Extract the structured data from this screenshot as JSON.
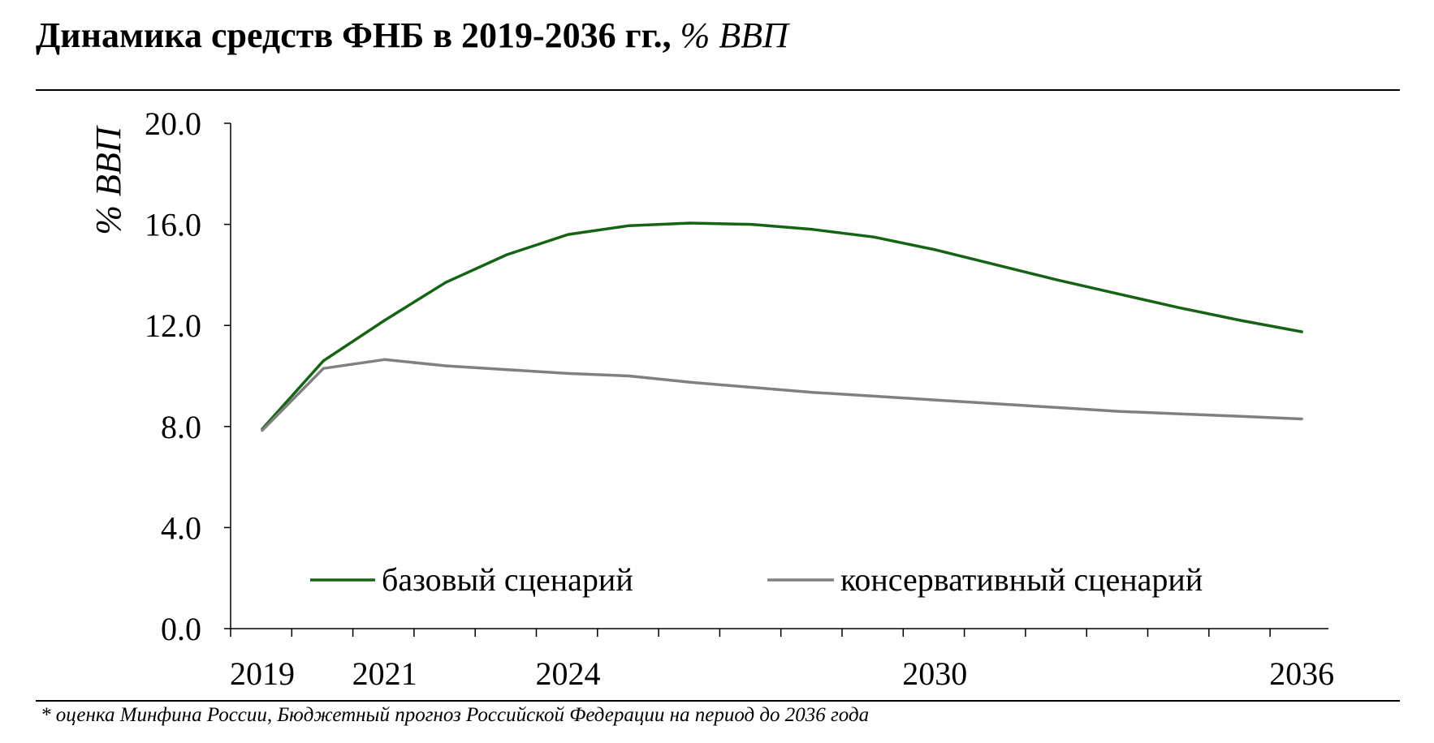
{
  "header": {
    "title_main": "Динамика средств ФНБ в 2019-2036 гг.,",
    "title_unit": "% ВВП"
  },
  "footnote": "* оценка Минфина России, Бюджетный прогноз Российской Федерации на период до 2036 года",
  "chart_data": {
    "type": "line",
    "title": "Динамика средств ФНБ в 2019-2036 гг., % ВВП",
    "ylabel": "% ВВП",
    "xlabel": "",
    "ylim": [
      0,
      20
    ],
    "yticks": [
      "0.0",
      "4.0",
      "8.0",
      "12.0",
      "16.0",
      "20.0"
    ],
    "x": [
      2019,
      2020,
      2021,
      2022,
      2023,
      2024,
      2025,
      2026,
      2027,
      2028,
      2029,
      2030,
      2031,
      2032,
      2033,
      2034,
      2035,
      2036
    ],
    "xtick_labels": [
      "2019",
      "2021",
      "2024",
      "2030",
      "2036"
    ],
    "grid": false,
    "legend_position": "bottom-center",
    "series": [
      {
        "name": "базовый сценарий",
        "color": "#156315",
        "values": [
          7.9,
          10.6,
          12.2,
          13.7,
          14.8,
          15.6,
          15.95,
          16.05,
          16.0,
          15.8,
          15.5,
          15.0,
          14.4,
          13.8,
          13.25,
          12.7,
          12.2,
          11.75
        ]
      },
      {
        "name": "консервативный сценарий",
        "color": "#808080",
        "values": [
          7.85,
          10.3,
          10.65,
          10.4,
          10.25,
          10.1,
          10.0,
          9.75,
          9.55,
          9.35,
          9.2,
          9.05,
          8.9,
          8.75,
          8.6,
          8.5,
          8.4,
          8.3
        ]
      }
    ]
  }
}
